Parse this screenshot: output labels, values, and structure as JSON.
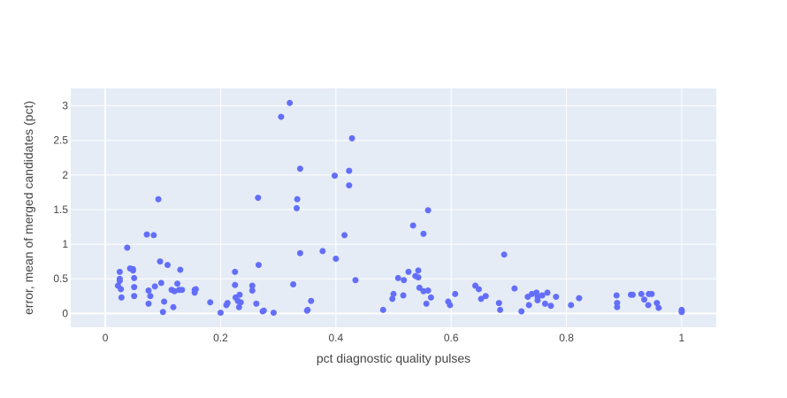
{
  "chart_data": {
    "type": "scatter",
    "xlabel": "pct diagnostic quality pulses",
    "ylabel": "error, mean of merged candidates (pct)",
    "xlim": [
      -0.06,
      1.06
    ],
    "ylim": [
      -0.2,
      3.25
    ],
    "xticks": [
      0,
      0.2,
      0.4,
      0.6,
      0.8,
      1
    ],
    "xtick_labels": [
      "0",
      "0.2",
      "0.4",
      "0.6",
      "0.8",
      "1"
    ],
    "yticks": [
      0,
      0.5,
      1,
      1.5,
      2,
      2.5,
      3
    ],
    "ytick_labels": [
      "0",
      "0.5",
      "1",
      "1.5",
      "2",
      "2.5",
      "3"
    ],
    "grid": true,
    "colors": {
      "marker": "#636efa",
      "plot_bg": "#e5ecf6",
      "grid": "#ffffff",
      "text": "#444444"
    },
    "points": [
      [
        0.022,
        0.4
      ],
      [
        0.025,
        0.47
      ],
      [
        0.025,
        0.5
      ],
      [
        0.025,
        0.6
      ],
      [
        0.027,
        0.35
      ],
      [
        0.028,
        0.23
      ],
      [
        0.038,
        0.95
      ],
      [
        0.043,
        0.65
      ],
      [
        0.048,
        0.62
      ],
      [
        0.048,
        0.64
      ],
      [
        0.05,
        0.51
      ],
      [
        0.05,
        0.38
      ],
      [
        0.05,
        0.25
      ],
      [
        0.072,
        1.14
      ],
      [
        0.075,
        0.33
      ],
      [
        0.075,
        0.14
      ],
      [
        0.078,
        0.25
      ],
      [
        0.084,
        1.13
      ],
      [
        0.086,
        0.39
      ],
      [
        0.092,
        1.65
      ],
      [
        0.095,
        0.75
      ],
      [
        0.097,
        0.44
      ],
      [
        0.1,
        0.02
      ],
      [
        0.102,
        0.17
      ],
      [
        0.108,
        0.7
      ],
      [
        0.115,
        0.34
      ],
      [
        0.118,
        0.09
      ],
      [
        0.12,
        0.32
      ],
      [
        0.125,
        0.43
      ],
      [
        0.128,
        0.34
      ],
      [
        0.13,
        0.63
      ],
      [
        0.133,
        0.34
      ],
      [
        0.155,
        0.34
      ],
      [
        0.155,
        0.3
      ],
      [
        0.157,
        0.35
      ],
      [
        0.182,
        0.16
      ],
      [
        0.2,
        0.01
      ],
      [
        0.21,
        0.12
      ],
      [
        0.212,
        0.15
      ],
      [
        0.225,
        0.41
      ],
      [
        0.225,
        0.6
      ],
      [
        0.226,
        0.23
      ],
      [
        0.23,
        0.18
      ],
      [
        0.232,
        0.09
      ],
      [
        0.233,
        0.27
      ],
      [
        0.235,
        0.16
      ],
      [
        0.255,
        0.4
      ],
      [
        0.255,
        0.33
      ],
      [
        0.262,
        0.14
      ],
      [
        0.265,
        1.67
      ],
      [
        0.266,
        0.7
      ],
      [
        0.273,
        0.03
      ],
      [
        0.275,
        0.04
      ],
      [
        0.292,
        0.01
      ],
      [
        0.305,
        2.84
      ],
      [
        0.32,
        3.04
      ],
      [
        0.326,
        0.42
      ],
      [
        0.332,
        1.52
      ],
      [
        0.333,
        1.65
      ],
      [
        0.338,
        2.09
      ],
      [
        0.338,
        0.87
      ],
      [
        0.35,
        0.04
      ],
      [
        0.351,
        0.05
      ],
      [
        0.357,
        0.18
      ],
      [
        0.377,
        0.9
      ],
      [
        0.398,
        1.99
      ],
      [
        0.4,
        0.79
      ],
      [
        0.415,
        1.13
      ],
      [
        0.423,
        2.06
      ],
      [
        0.423,
        1.85
      ],
      [
        0.428,
        2.53
      ],
      [
        0.434,
        0.48
      ],
      [
        0.482,
        0.05
      ],
      [
        0.498,
        0.21
      ],
      [
        0.5,
        0.28
      ],
      [
        0.508,
        0.51
      ],
      [
        0.517,
        0.26
      ],
      [
        0.518,
        0.48
      ],
      [
        0.526,
        0.6
      ],
      [
        0.534,
        1.27
      ],
      [
        0.538,
        0.54
      ],
      [
        0.543,
        0.62
      ],
      [
        0.543,
        0.52
      ],
      [
        0.545,
        0.37
      ],
      [
        0.552,
        1.15
      ],
      [
        0.552,
        0.32
      ],
      [
        0.557,
        0.14
      ],
      [
        0.56,
        0.33
      ],
      [
        0.56,
        1.49
      ],
      [
        0.565,
        0.23
      ],
      [
        0.595,
        0.17
      ],
      [
        0.598,
        0.12
      ],
      [
        0.607,
        0.28
      ],
      [
        0.642,
        0.4
      ],
      [
        0.648,
        0.35
      ],
      [
        0.652,
        0.21
      ],
      [
        0.66,
        0.25
      ],
      [
        0.683,
        0.15
      ],
      [
        0.685,
        0.05
      ],
      [
        0.692,
        0.85
      ],
      [
        0.71,
        0.36
      ],
      [
        0.722,
        0.03
      ],
      [
        0.733,
        0.24
      ],
      [
        0.735,
        0.12
      ],
      [
        0.74,
        0.28
      ],
      [
        0.748,
        0.3
      ],
      [
        0.75,
        0.19
      ],
      [
        0.75,
        0.24
      ],
      [
        0.758,
        0.26
      ],
      [
        0.763,
        0.14
      ],
      [
        0.767,
        0.3
      ],
      [
        0.773,
        0.11
      ],
      [
        0.782,
        0.24
      ],
      [
        0.808,
        0.12
      ],
      [
        0.822,
        0.22
      ],
      [
        0.887,
        0.26
      ],
      [
        0.888,
        0.15
      ],
      [
        0.888,
        0.09
      ],
      [
        0.912,
        0.27
      ],
      [
        0.915,
        0.27
      ],
      [
        0.93,
        0.28
      ],
      [
        0.935,
        0.2
      ],
      [
        0.942,
        0.12
      ],
      [
        0.943,
        0.28
      ],
      [
        0.948,
        0.28
      ],
      [
        0.957,
        0.15
      ],
      [
        0.96,
        0.08
      ],
      [
        1.0,
        0.05
      ],
      [
        1.0,
        0.04
      ],
      [
        1.0,
        0.02
      ]
    ]
  }
}
